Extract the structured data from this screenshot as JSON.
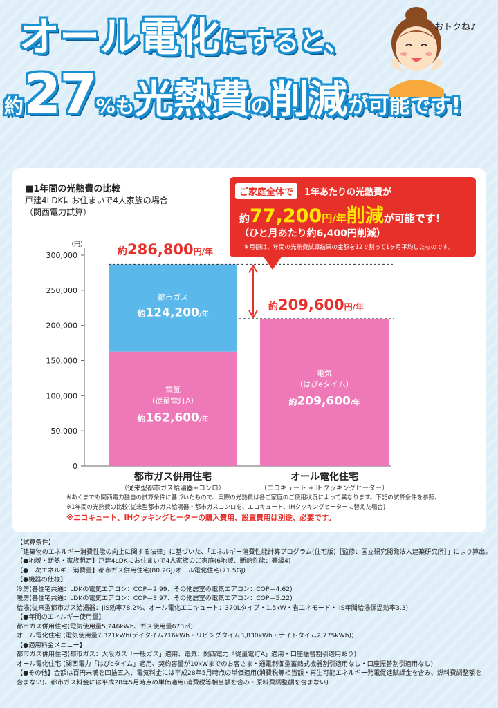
{
  "headline": {
    "line1_big": "オール電化",
    "line1_small": "にすると、",
    "prefix": "約",
    "number": "27",
    "percent_mo": "%も",
    "big1": "光熱費",
    "no": "の",
    "big2": "削減",
    "suffix": "が可能です!"
  },
  "mascot": {
    "speech": "おトクね♪"
  },
  "panel": {
    "title": "■1年間の光熱費の比較",
    "sub1": "戸建4LDKにお住まいで4人家族の場合",
    "sub2": "（関西電力試算）"
  },
  "callout": {
    "tag": "ご家庭全体で",
    "line1": "1年あたりの光熱費が",
    "prefix": "約",
    "amount": "77,200",
    "unit": "円/年",
    "highlight": "削減",
    "suffix": "が可能です!",
    "line3": "（ひと月あたり約6,400円削減）",
    "note": "＊月額は、年間の光熱費試算結果の金額を12で割って1ヶ月平均したものです。"
  },
  "chart_data": {
    "type": "bar",
    "unit_label": "（円）",
    "ylim": [
      0,
      300000
    ],
    "yticks": [
      "0",
      "50,000",
      "100,000",
      "150,000",
      "200,000",
      "250,000",
      "300,000"
    ],
    "categories": [
      {
        "name": "都市ガス併用住宅",
        "sub": "（従来型都市ガス給湯器+コンロ）"
      },
      {
        "name": "オール電化住宅",
        "sub": "（エコキュート + IHクッキングヒーター）"
      }
    ],
    "stacks": [
      [
        {
          "label": "電気",
          "sub": "（従量電灯A）",
          "prefix": "約",
          "value": 162600,
          "value_text": "162,600",
          "unit": "/年",
          "color": "#ee78b8"
        },
        {
          "label": "都市ガス",
          "sub": "",
          "prefix": "約",
          "value": 124200,
          "value_text": "124,200",
          "unit": "/年",
          "color": "#5ab8ea"
        }
      ],
      [
        {
          "label": "電気",
          "sub": "（はぴeタイム）",
          "prefix": "約",
          "value": 209600,
          "value_text": "209,600",
          "unit": "/年",
          "color": "#ee78b8"
        }
      ]
    ],
    "totals": [
      {
        "prefix": "約",
        "value": 286800,
        "value_text": "286,800",
        "unit": "円/年"
      },
      {
        "prefix": "約",
        "value": 209600,
        "value_text": "209,600",
        "unit": "円/年"
      }
    ],
    "total_color": "#e8302a"
  },
  "footnotes": {
    "n1": "※あくまでも関西電力独自の試算条件に基づいたもので、実際の光熱費は各ご家庭のご使用状況によって異なります。下記の試算条件を参照。",
    "n2": "※1年間の光熱費の比較(従来型都市ガス給湯器・都市ガスコンロを、エコキュート、IHクッキングヒーターに替えた場合)",
    "warn": "※エコキュート、IHクッキングヒーターの購入費用、設置費用は別途、必要です。"
  },
  "conditions": [
    "【試算条件】",
    "「建築物のエネルギー消費性能の向上に関する法律」に基づいた、「エネルギー消費性能計算プログラム(住宅版)［監修：国立研究開発法人建築研究所］」により算出。",
    "【●地域・断熱・家族想定】戸建4LDKにお住まいで4人家族のご家庭(6地域、断熱性能：等級4)",
    "【●一次エネルギー消費量】都市ガス併用住宅(80.2GJ)オール電化住宅(71.5GJ)",
    "【●機器の仕様】",
    "冷房(各住宅共通：LDKの電気エアコン：COP＝2.99、その他居室の電気エアコン：COP＝4.62)",
    "暖房(各住宅共通：LDKの電気エアコン：COP＝3.97、その他居室の電気エアコン：COP＝5.22)",
    "給湯(従来型都市ガス給湯器：JIS効率78.2%、オール電化エコキュート：370Lタイプ・1.5kW・省エネモード・JIS年間給湯保温効率3.3)",
    "【●年間のエネルギー使用量】",
    "都市ガス併用住宅(電気使用量5,246kWh、ガス使用量673㎥)",
    "オール電化住宅 (電気使用量7,321kWh(デイタイム716kWh・リビングタイム3,830kWh・ナイトタイム2,775kWh))",
    "【●適用料金メニュー】",
    "都市ガス併用住宅(都市ガス：大阪ガス「一般ガス」適用、電気：関西電力「従量電灯A」適用・口座振替割引適用あり)",
    "オール電化住宅 (関西電力「はぴeタイム」適用、契約容量が10kWまでのお客さま・通電制御型蓄熱式機器割引適用なし・口座振替割引適用なし)",
    "【●その他】金額は百円未満を四捨五入、電気料金には平成28年5月時点の単価適用(消費税等相当額・再生可能エネルギー発電促進賦課金を含み、燃料費調整額を",
    "含まない)、都市ガス料金には平成28年5月時点の単価適用(消費税等相当額を含み・原料費調整額を含まない)"
  ]
}
